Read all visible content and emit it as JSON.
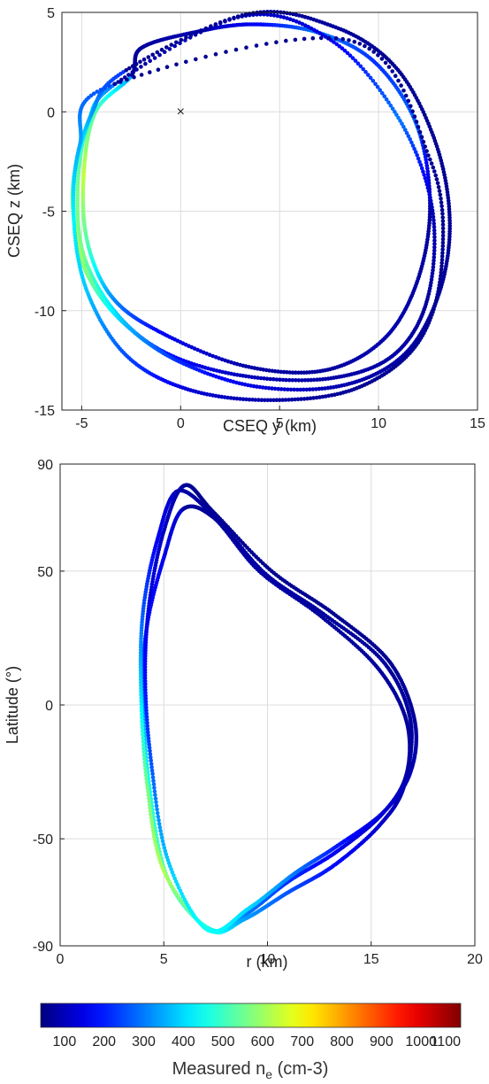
{
  "chart_data": [
    {
      "type": "scatter",
      "xlabel": "CSEQ y  (km)",
      "ylabel": "CSEQ z  (km)",
      "xlim": [
        -6,
        15
      ],
      "ylim": [
        -15,
        5
      ],
      "xticks": [
        -5,
        0,
        5,
        10,
        15
      ],
      "yticks": [
        -15,
        -10,
        -5,
        0,
        5
      ],
      "grid": true,
      "marker": {
        "symbol": "×",
        "x": 0,
        "y": 0
      },
      "series": [
        {
          "ne": [
            330,
            520,
            640,
            520,
            320,
            160,
            80,
            70,
            90,
            75,
            70,
            280,
            220,
            300,
            160,
            90,
            70,
            60
          ],
          "x": [
            -2.5,
            -4.3,
            -4.9,
            -4.7,
            -3.4,
            -0.8,
            3.3,
            7.3,
            10.3,
            12.0,
            12.6,
            11.9,
            9.8,
            6.9,
            3.6,
            0.7,
            -2.0,
            -2.5
          ],
          "y": [
            1.8,
            0.0,
            -3.2,
            -6.6,
            -9.4,
            -11.2,
            -12.8,
            -13.0,
            -11.4,
            -8.4,
            -4.6,
            -0.6,
            2.5,
            4.0,
            4.4,
            4.0,
            3.2,
            1.8
          ]
        },
        {
          "ne": [
            300,
            470,
            560,
            560,
            380,
            180,
            100,
            80,
            80,
            70,
            100,
            300,
            150,
            100,
            70
          ],
          "x": [
            -3.3,
            -4.7,
            -5.2,
            -4.9,
            -3.2,
            -0.6,
            3.3,
            7.6,
            10.8,
            12.5,
            12.7,
            11.0,
            7.6,
            3.1,
            -3.3
          ],
          "y": [
            1.4,
            -0.7,
            -3.8,
            -7.2,
            -10.2,
            -12.2,
            -13.3,
            -13.4,
            -12.2,
            -9.3,
            -4.8,
            -0.3,
            3.6,
            4.8,
            1.4
          ]
        },
        {
          "ne": [
            230,
            330,
            500,
            640,
            560,
            380,
            220,
            140,
            90,
            80,
            70,
            60,
            60,
            60,
            70,
            60,
            60
          ],
          "x": [
            -2.9,
            -4.5,
            -5.4,
            -5.3,
            -4.6,
            -2.9,
            -0.2,
            3.7,
            8.0,
            11.2,
            13.0,
            13.6,
            12.9,
            10.9,
            7.7,
            3.3,
            -2.9
          ],
          "y": [
            2.0,
            -0.1,
            -3.3,
            -6.1,
            -8.4,
            -10.6,
            -12.5,
            -13.8,
            -13.8,
            -12.3,
            -9.3,
            -5.6,
            -1.6,
            2.2,
            4.3,
            4.9,
            2.0
          ]
        },
        {
          "ne": [
            250,
            350,
            430,
            380,
            250,
            130,
            80,
            60,
            60,
            60,
            60,
            60,
            60
          ],
          "x": [
            -3.6,
            -5.1,
            -5.4,
            -4.7,
            -2.7,
            0.5,
            4.7,
            8.9,
            12.0,
            13.2,
            12.6,
            8.5,
            -3.6
          ],
          "y": [
            1.3,
            -1.7,
            -5.4,
            -9.1,
            -12.3,
            -14.0,
            -14.5,
            -13.9,
            -11.6,
            -7.6,
            -2.4,
            3.6,
            1.3
          ]
        }
      ]
    },
    {
      "type": "scatter",
      "xlabel": "r (km)",
      "ylabel": "Latitude (°)",
      "xlim": [
        0,
        20
      ],
      "ylim": [
        -90,
        90
      ],
      "xticks": [
        0,
        5,
        10,
        15,
        20
      ],
      "yticks": [
        -90,
        -50,
        0,
        50,
        90
      ],
      "grid": true,
      "series": [
        {
          "ne": [
            120,
            150,
            200,
            300,
            450,
            520,
            420,
            300,
            220,
            160,
            110,
            80,
            70,
            70,
            70,
            80,
            70,
            70
          ],
          "r": [
            5.9,
            5.0,
            4.2,
            4.0,
            4.3,
            5.2,
            7.3,
            9.0,
            11.0,
            13.3,
            15.5,
            16.7,
            16.7,
            15.3,
            12.6,
            9.6,
            7.4,
            5.9
          ],
          "lat": [
            73,
            55,
            30,
            5,
            -30,
            -65,
            -84,
            -78,
            -66,
            -55,
            -41,
            -26,
            -6,
            14,
            33,
            50,
            70,
            73
          ]
        },
        {
          "ne": [
            100,
            160,
            260,
            400,
            560,
            620,
            480,
            340,
            260,
            180,
            120,
            80,
            70,
            70,
            70,
            80,
            70,
            80
          ],
          "r": [
            5.7,
            4.7,
            4.0,
            3.9,
            4.2,
            5.0,
            7.2,
            8.9,
            11.0,
            13.2,
            15.4,
            16.6,
            16.9,
            15.6,
            12.7,
            9.9,
            7.6,
            5.7
          ],
          "lat": [
            80,
            62,
            35,
            5,
            -30,
            -62,
            -84,
            -80,
            -70,
            -60,
            -45,
            -30,
            -6,
            16,
            34,
            49,
            69,
            80
          ]
        },
        {
          "ne": [
            80,
            110,
            140,
            180,
            260,
            380,
            450,
            400,
            300,
            200,
            130,
            90,
            70,
            60,
            60,
            60,
            60,
            60
          ],
          "r": [
            6.0,
            5.0,
            4.3,
            4.1,
            4.4,
            5.2,
            7.1,
            9.1,
            11.3,
            13.3,
            15.6,
            16.9,
            17.1,
            15.9,
            13.2,
            10.2,
            7.4,
            6.0
          ],
          "lat": [
            82,
            65,
            38,
            10,
            -22,
            -58,
            -84,
            -76,
            -63,
            -53,
            -40,
            -25,
            -6,
            16,
            34,
            50,
            72,
            82
          ]
        }
      ]
    }
  ],
  "colorbar": {
    "label_main": "Measured n",
    "label_sub": "e",
    "label_unit": " (cm-3)",
    "ticks": [
      100,
      200,
      300,
      400,
      500,
      600,
      700,
      800,
      900,
      1000,
      1100
    ],
    "range": [
      40,
      1100
    ],
    "colormap": "jet"
  }
}
